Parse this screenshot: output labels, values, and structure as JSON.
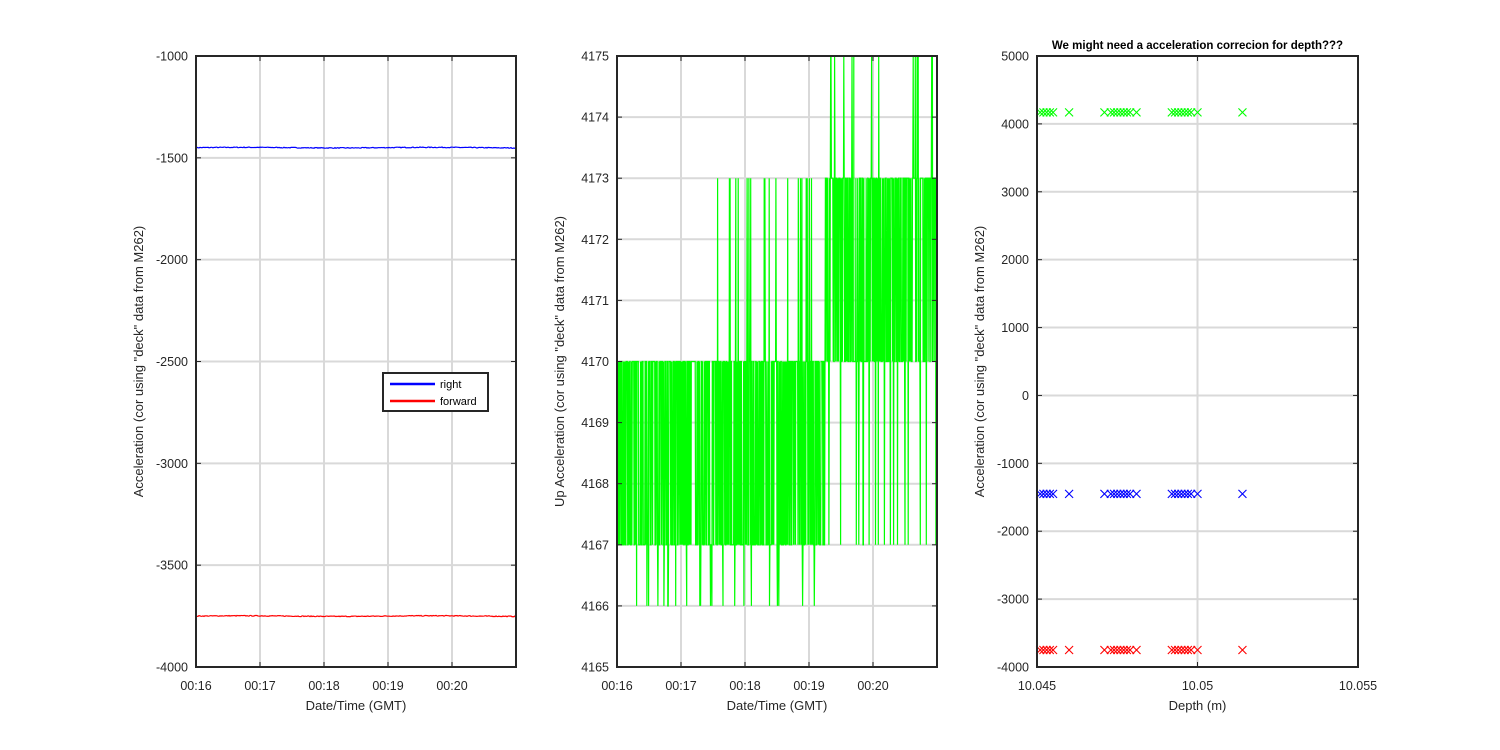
{
  "chart_data": [
    {
      "type": "line",
      "title": "",
      "xlabel": "Date/Time (GMT)",
      "ylabel": "Acceleration (cor using \"deck\" data from M262)",
      "x_tick_labels": [
        "00:16",
        "00:17",
        "00:18",
        "00:19",
        "00:20"
      ],
      "x_ticks_minutes_after_0016": [
        0,
        1,
        2,
        3,
        4
      ],
      "xlim_minutes_after_0016": [
        0,
        5
      ],
      "ylim": [
        -4000,
        -1000
      ],
      "y_ticks": [
        -4000,
        -3500,
        -3000,
        -2500,
        -2000,
        -1500,
        -1000
      ],
      "grid": true,
      "legend_position": "center-right",
      "series": [
        {
          "name": "right",
          "color": "#0000ff",
          "level": -1450,
          "noise": 4
        },
        {
          "name": "forward",
          "color": "#ff0000",
          "level": -3750,
          "noise": 4
        }
      ]
    },
    {
      "type": "line",
      "title": "",
      "xlabel": "Date/Time (GMT)",
      "ylabel": "Up Acceleration (cor using \"deck\" data from M262)",
      "x_tick_labels": [
        "00:16",
        "00:17",
        "00:18",
        "00:19",
        "00:20"
      ],
      "x_ticks_minutes_after_0016": [
        0,
        1,
        2,
        3,
        4
      ],
      "xlim_minutes_after_0016": [
        0,
        5
      ],
      "ylim": [
        4165,
        4175
      ],
      "y_ticks": [
        4165,
        4166,
        4167,
        4168,
        4169,
        4170,
        4171,
        4172,
        4173,
        4174,
        4175
      ],
      "grid": true,
      "series": [
        {
          "color": "#00ff00",
          "discrete_levels": [
            4166,
            4167,
            4170,
            4173,
            4175
          ],
          "segments": [
            {
              "x_range": [
                0,
                1.55
              ],
              "values_between": [
                4166,
                4170
              ],
              "typical": [
                4167,
                4170
              ]
            },
            {
              "x_range": [
                1.55,
                3.25
              ],
              "values_between": [
                4166,
                4173
              ],
              "typical": [
                4167,
                4170
              ]
            },
            {
              "x_range": [
                3.25,
                5
              ],
              "values_between": [
                4167,
                4175
              ],
              "typical": [
                4170,
                4173
              ]
            }
          ],
          "spike": {
            "x": 3.7,
            "y": 4175
          }
        }
      ]
    },
    {
      "type": "scatter",
      "title": "We might need a acceleration correcion for depth???",
      "xlabel": "Depth (m)",
      "ylabel": "Acceleration (cor using \"deck\" data from M262)",
      "xlim": [
        10.045,
        10.055
      ],
      "x_ticks": [
        10.045,
        10.05,
        10.055
      ],
      "x_tick_labels": [
        "10.045",
        "10.05",
        "10.055"
      ],
      "ylim": [
        -4000,
        5000
      ],
      "y_ticks": [
        -4000,
        -3000,
        -2000,
        -1000,
        0,
        1000,
        2000,
        3000,
        4000,
        5000
      ],
      "grid": true,
      "marker": "x",
      "depths": [
        10.0451,
        10.0452,
        10.0453,
        10.0454,
        10.0455,
        10.046,
        10.0471,
        10.0473,
        10.0474,
        10.0475,
        10.0476,
        10.0477,
        10.0478,
        10.0479,
        10.0481,
        10.0492,
        10.0493,
        10.0494,
        10.0495,
        10.0496,
        10.0497,
        10.0498,
        10.05,
        10.0514
      ],
      "series": [
        {
          "color": "#00ff00",
          "value": 4170
        },
        {
          "color": "#0000ff",
          "value": -1450
        },
        {
          "color": "#ff0000",
          "value": -3750
        }
      ]
    }
  ]
}
